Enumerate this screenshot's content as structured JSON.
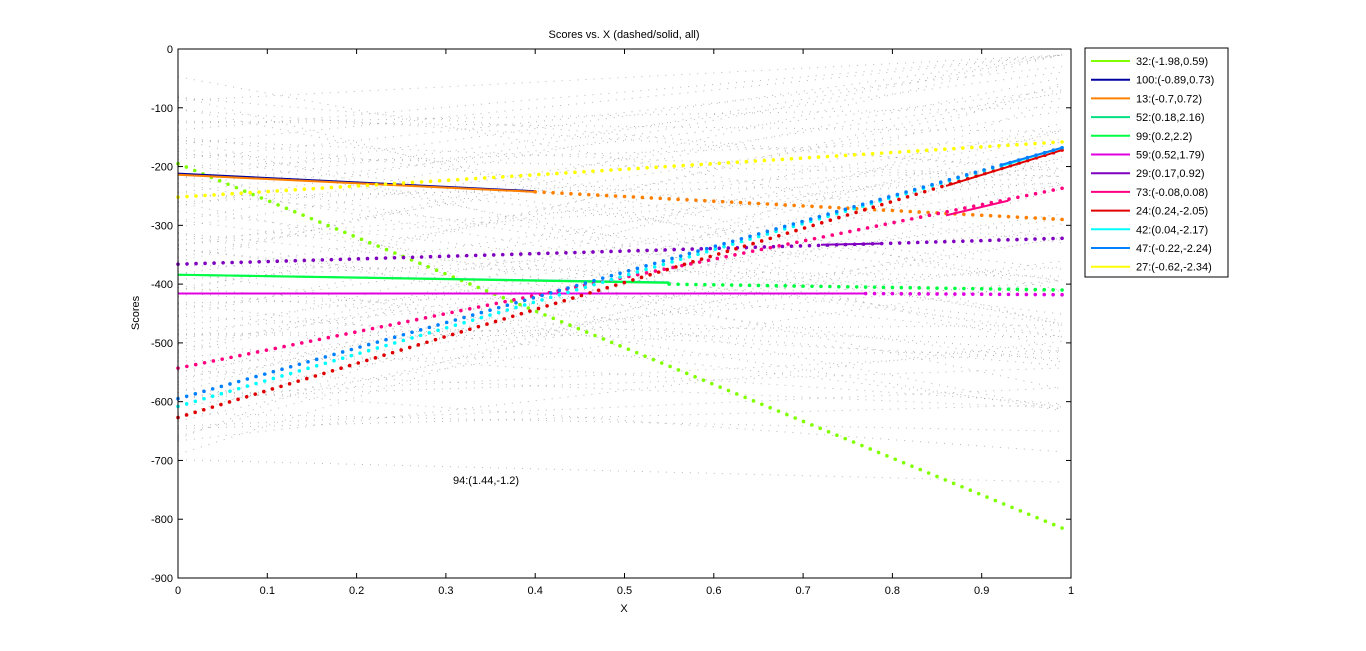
{
  "chart_data": {
    "type": "line",
    "title": "Scores vs. X (dashed/solid, all)",
    "xlabel": "X",
    "ylabel": "Scores",
    "xlim": [
      0,
      1
    ],
    "ylim": [
      -900,
      0
    ],
    "x_ticks": [
      "0",
      "0.1",
      "0.2",
      "0.3",
      "0.4",
      "0.5",
      "0.6",
      "0.7",
      "0.8",
      "0.9",
      "1"
    ],
    "y_ticks": [
      "0",
      "-100",
      "-200",
      "-300",
      "-400",
      "-500",
      "-600",
      "-700",
      "-800",
      "-900"
    ],
    "legend_placement": "outside-top-right",
    "annotation": "94:(1.44,-1.2)",
    "series": [
      {
        "name": "32:(-1.98,0.59)",
        "color": "#80ff00",
        "dotted": [
          [
            0,
            -195
          ],
          [
            0.99,
            -815
          ]
        ],
        "solid": []
      },
      {
        "name": "100:(-0.89,0.73)",
        "color": "#0000a0",
        "dotted": [],
        "solid": [
          [
            0,
            -212
          ],
          [
            0.4,
            -242
          ]
        ]
      },
      {
        "name": "13:(-0.7,0.72)",
        "color": "#ff8000",
        "dotted": [
          [
            0.4,
            -243
          ],
          [
            0.99,
            -290
          ]
        ],
        "solid": [
          [
            0,
            -214
          ],
          [
            0.4,
            -243
          ]
        ]
      },
      {
        "name": "52:(0.18,2.16)",
        "color": "#00e080",
        "dotted": [],
        "solid": [
          [
            0,
            -384
          ],
          [
            0.55,
            -397
          ]
        ]
      },
      {
        "name": "99:(0.2,2.2)",
        "color": "#00ff40",
        "dotted": [
          [
            0.55,
            -400
          ],
          [
            0.99,
            -410
          ]
        ],
        "solid": [
          [
            0,
            -384
          ],
          [
            0.55,
            -398
          ]
        ]
      },
      {
        "name": "59:(0.52,1.79)",
        "color": "#e000e0",
        "dotted": [
          [
            0.77,
            -416
          ],
          [
            0.99,
            -418
          ]
        ],
        "solid": [
          [
            0,
            -416
          ],
          [
            0.77,
            -416
          ]
        ]
      },
      {
        "name": "29:(0.17,0.92)",
        "color": "#8000c0",
        "dotted": [
          [
            0,
            -366
          ],
          [
            0.99,
            -322
          ]
        ],
        "solid": [
          [
            0.72,
            -333
          ],
          [
            0.79,
            -331
          ]
        ]
      },
      {
        "name": "73:(-0.08,0.08)",
        "color": "#ff0080",
        "dotted": [
          [
            0,
            -543
          ],
          [
            0.99,
            -237
          ]
        ],
        "solid": [
          [
            0.86,
            -283
          ],
          [
            0.93,
            -258
          ]
        ]
      },
      {
        "name": "24:(0.24,-2.05)",
        "color": "#e00000",
        "dotted": [
          [
            0,
            -627
          ],
          [
            0.99,
            -172
          ]
        ],
        "solid": [
          [
            0.86,
            -233
          ],
          [
            0.99,
            -172
          ]
        ]
      },
      {
        "name": "42:(0.04,-2.17)",
        "color": "#00ffff",
        "dotted": [
          [
            0,
            -608
          ],
          [
            0.99,
            -168
          ]
        ],
        "solid": [
          [
            0.92,
            -200
          ],
          [
            0.99,
            -168
          ]
        ]
      },
      {
        "name": "47:(-0.22,-2.24)",
        "color": "#0080ff",
        "dotted": [
          [
            0,
            -595
          ],
          [
            0.99,
            -168
          ]
        ],
        "solid": [
          [
            0.92,
            -198
          ],
          [
            0.99,
            -168
          ]
        ]
      },
      {
        "name": "27:(-0.62,-2.34)",
        "color": "#ffff00",
        "dotted": [
          [
            0,
            -252
          ],
          [
            0.99,
            -158
          ]
        ],
        "solid": []
      }
    ],
    "background_series_count": 88
  }
}
